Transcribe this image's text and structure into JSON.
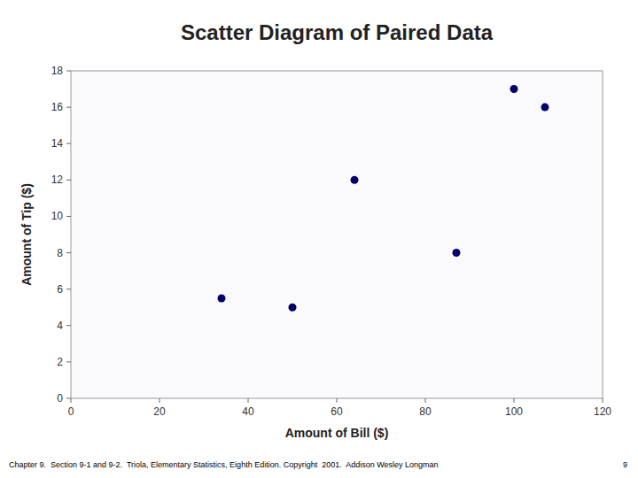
{
  "chart_data": {
    "type": "scatter",
    "title": "Scatter Diagram of Paired Data",
    "x_label": "Amount of Bill ($)",
    "y_label": "Amount of Tip ($)",
    "x": [
      34,
      50,
      64,
      87,
      100,
      107
    ],
    "values": [
      5.5,
      5.0,
      12.0,
      8.0,
      17.0,
      16.0
    ],
    "color": "#00006A",
    "marker": "circle",
    "xlim": [
      0,
      120
    ],
    "ylim": [
      0,
      18
    ],
    "xticks": [
      0,
      20,
      40,
      60,
      80,
      100,
      120
    ],
    "yticks": [
      0,
      2,
      4,
      6,
      8,
      10,
      12,
      14,
      16,
      18
    ],
    "grid": false,
    "annotations": [
      "Chapter 9.  Section 9-1 and 9-2.  Triola, Elementary Statistics, Eighth Edition. Copyright  2001.  Addison Wesley Longman",
      "9"
    ]
  }
}
